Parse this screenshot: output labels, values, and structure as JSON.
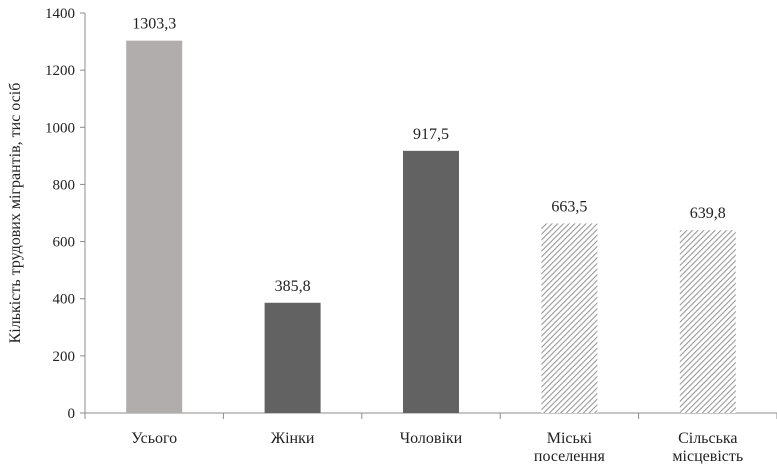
{
  "chart_data": {
    "type": "bar",
    "categories": [
      [
        "Усього"
      ],
      [
        "Жінки"
      ],
      [
        "Чоловіки"
      ],
      [
        "Міські",
        "поселення"
      ],
      [
        "Сільська",
        "місцевість"
      ]
    ],
    "values": [
      1303.3,
      385.8,
      917.5,
      663.5,
      639.8
    ],
    "data_labels": [
      "1303,3",
      "385,8",
      "917,5",
      "663,5",
      "639,8"
    ],
    "ylabel": "Кількість трудових мігрантів, тис осіб",
    "ylim": [
      0,
      1400
    ],
    "yticks": [
      0,
      200,
      400,
      600,
      800,
      1000,
      1200,
      1400
    ],
    "grid": false,
    "legend": "none",
    "bar_styles": [
      "solid-light",
      "solid-dark",
      "solid-dark",
      "hatched",
      "hatched"
    ],
    "colors": {
      "light_gray": "#b1adad",
      "dark_gray": "#626262",
      "hatch_stroke": "#9a9a9a"
    }
  }
}
